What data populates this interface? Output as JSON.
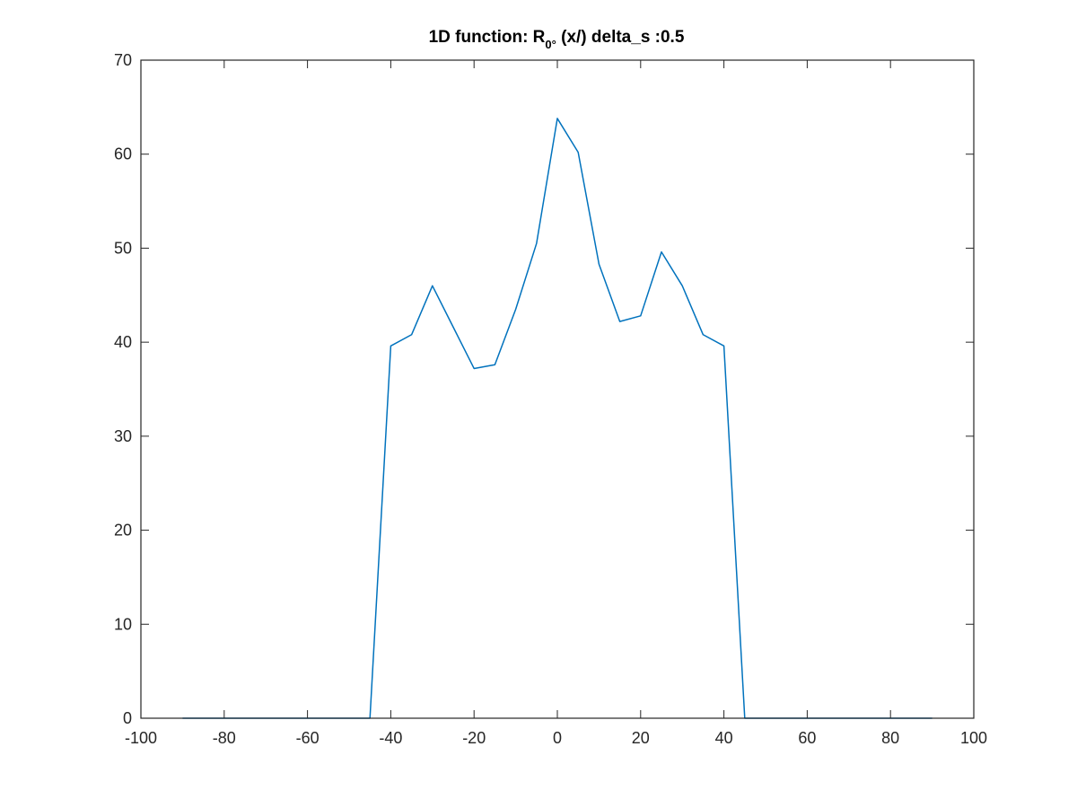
{
  "chart_data": {
    "type": "line",
    "title": {
      "prefix": "1D function: R",
      "subscript": "0°",
      "suffix": " (x/) delta_s :0.5"
    },
    "xlabel": "",
    "ylabel": "",
    "xlim": [
      -100,
      100
    ],
    "ylim": [
      0,
      70
    ],
    "x_ticks": [
      -100,
      -80,
      -60,
      -40,
      -20,
      0,
      20,
      40,
      60,
      80,
      100
    ],
    "y_ticks": [
      0,
      10,
      20,
      30,
      40,
      50,
      60,
      70
    ],
    "grid": false,
    "legend": "none",
    "line_color": "#0072BD",
    "axis_color": "#262626",
    "series": [
      {
        "x": [
          -90,
          -85,
          -80,
          -75,
          -70,
          -65,
          -60,
          -55,
          -50,
          -45,
          -40,
          -35,
          -30,
          -25,
          -20,
          -15,
          -10,
          -5,
          0,
          5,
          10,
          15,
          20,
          25,
          30,
          35,
          40,
          45,
          50,
          55,
          60,
          65,
          70,
          75,
          80,
          85,
          90
        ],
        "y": [
          0,
          0,
          0,
          0,
          0,
          0,
          0,
          0,
          0,
          0,
          39.6,
          40.8,
          46.0,
          41.6,
          37.2,
          37.6,
          43.5,
          50.5,
          63.8,
          60.2,
          48.3,
          42.2,
          42.8,
          49.6,
          46.0,
          40.8,
          39.6,
          0,
          0,
          0,
          0,
          0,
          0,
          0,
          0,
          0,
          0
        ]
      }
    ]
  }
}
